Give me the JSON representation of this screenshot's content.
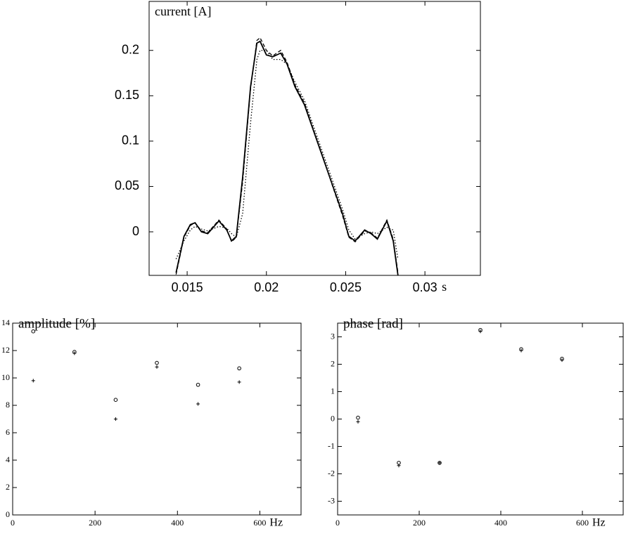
{
  "chart_data": [
    {
      "type": "line",
      "title": "current [A]",
      "xlabel": "s",
      "x": [
        0.0143,
        0.0148,
        0.0152,
        0.0155,
        0.0159,
        0.0163,
        0.017,
        0.0175,
        0.0178,
        0.0181,
        0.0185,
        0.019,
        0.0194,
        0.0196,
        0.02,
        0.0204,
        0.0209,
        0.0213,
        0.0218,
        0.0224,
        0.023,
        0.0236,
        0.0242,
        0.0248,
        0.0252,
        0.0256,
        0.0262,
        0.0266,
        0.027,
        0.0276,
        0.028,
        0.0283
      ],
      "series": [
        {
          "color": "#000000",
          "dash": "solid",
          "values": [
            -0.045,
            -0.005,
            0.008,
            0.01,
            0.0,
            -0.002,
            0.012,
            0.002,
            -0.01,
            -0.005,
            0.06,
            0.16,
            0.208,
            0.21,
            0.195,
            0.193,
            0.197,
            0.185,
            0.16,
            0.14,
            0.11,
            0.08,
            0.05,
            0.02,
            -0.005,
            -0.01,
            0.002,
            -0.002,
            -0.008,
            0.012,
            -0.01,
            -0.048
          ]
        },
        {
          "color": "#000000",
          "dash": "dashed",
          "values": [
            -0.047,
            -0.006,
            0.007,
            0.01,
            0.001,
            -0.001,
            0.013,
            0.003,
            -0.011,
            -0.006,
            0.055,
            0.158,
            0.211,
            0.214,
            0.2,
            0.194,
            0.2,
            0.187,
            0.162,
            0.142,
            0.111,
            0.081,
            0.049,
            0.018,
            -0.006,
            -0.011,
            0.001,
            -0.001,
            -0.007,
            0.013,
            -0.008,
            -0.045
          ]
        },
        {
          "color": "#000000",
          "dash": "dotted",
          "values": [
            -0.03,
            -0.01,
            0.002,
            0.006,
            0.003,
            0.001,
            0.006,
            0.004,
            -0.002,
            -0.006,
            0.02,
            0.12,
            0.19,
            0.2,
            0.2,
            0.19,
            0.19,
            0.185,
            0.165,
            0.145,
            0.115,
            0.085,
            0.055,
            0.025,
            0.002,
            -0.008,
            -0.002,
            0.0,
            -0.002,
            0.005,
            0.002,
            -0.03
          ]
        }
      ],
      "xlim": [
        0.0126,
        0.0335
      ],
      "xticks": [
        0.015,
        0.02,
        0.025,
        0.03
      ],
      "ylim": [
        -0.048,
        0.254
      ],
      "yticks": [
        0,
        0.05,
        0.1,
        0.15,
        0.2
      ]
    },
    {
      "type": "scatter",
      "title": "amplitude [%]",
      "xlabel": "Hz",
      "x": [
        50,
        150,
        250,
        350,
        450,
        550
      ],
      "series": [
        {
          "color": "#000000",
          "marker": "o",
          "values": [
            13.4,
            11.9,
            8.4,
            11.1,
            9.5,
            10.7
          ]
        },
        {
          "color": "#000000",
          "marker": "+",
          "values": [
            9.8,
            11.8,
            7.0,
            10.8,
            8.1,
            9.7
          ]
        }
      ],
      "xlim": [
        0,
        700
      ],
      "xticks": [
        0,
        200,
        400,
        600
      ],
      "ylim": [
        0,
        14
      ],
      "yticks": [
        0,
        2,
        4,
        6,
        8,
        10,
        12,
        14
      ]
    },
    {
      "type": "scatter",
      "title": "phase [rad]",
      "xlabel": "Hz",
      "x": [
        50,
        150,
        250,
        350,
        450,
        550
      ],
      "series": [
        {
          "color": "#000000",
          "marker": "o",
          "values": [
            0.05,
            -1.6,
            -1.6,
            3.25,
            2.55,
            2.2
          ]
        },
        {
          "color": "#000000",
          "marker": "+",
          "values": [
            -0.1,
            -1.7,
            -1.6,
            3.2,
            2.5,
            2.15
          ]
        }
      ],
      "xlim": [
        0,
        700
      ],
      "xticks": [
        0,
        200,
        400,
        600
      ],
      "ylim": [
        -3.5,
        3.5
      ],
      "yticks": [
        -3,
        -2,
        -1,
        0,
        1,
        2,
        3
      ]
    }
  ]
}
